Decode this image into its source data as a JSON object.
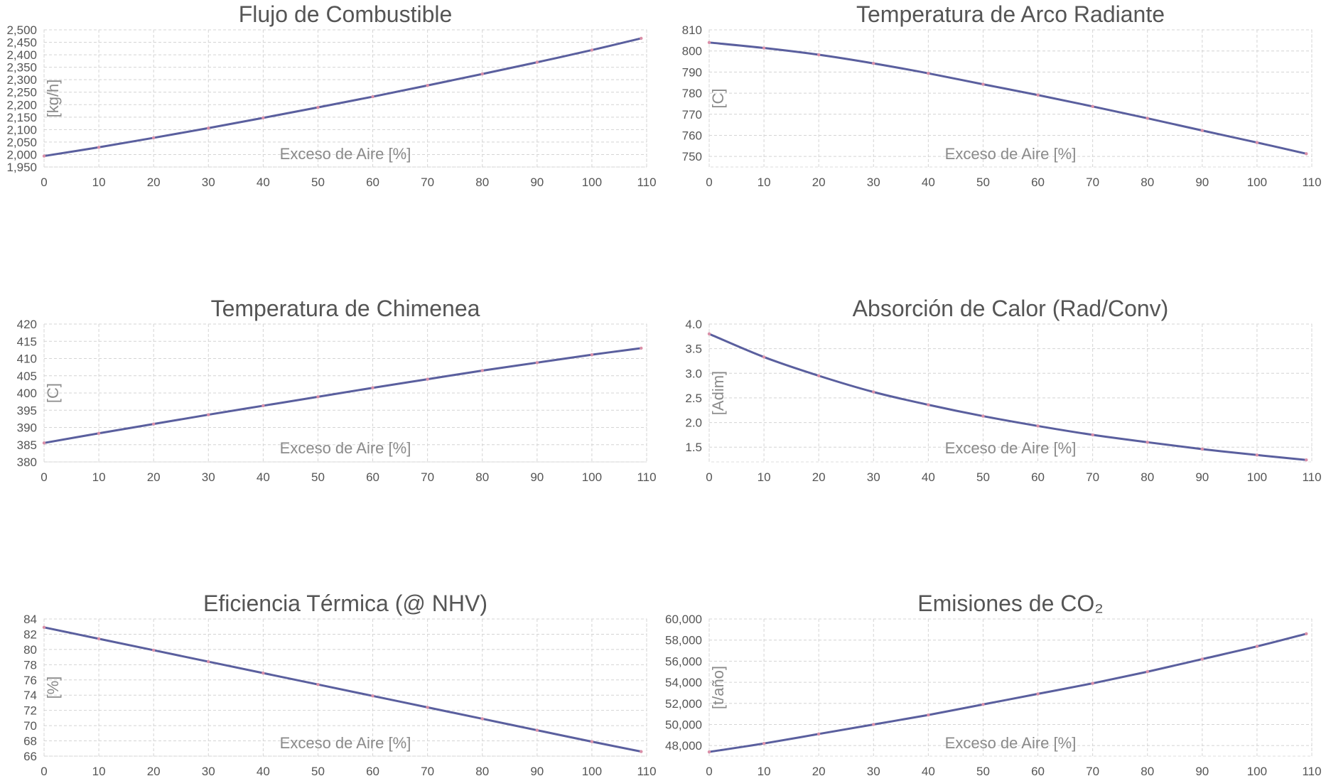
{
  "chart_data": [
    {
      "type": "line",
      "title": "Flujo de Combustible",
      "xlabel": "Exceso de Aire [%]",
      "ylabel": "[kg/h]",
      "xlim": [
        0,
        110
      ],
      "ylim": [
        1950,
        2500
      ],
      "xticks": [
        0,
        10,
        20,
        30,
        40,
        50,
        60,
        70,
        80,
        90,
        100,
        110
      ],
      "yticks": [
        1950,
        2000,
        2050,
        2100,
        2150,
        2200,
        2250,
        2300,
        2350,
        2400,
        2450,
        2500
      ],
      "ytick_labels": [
        "1,950",
        "2,000",
        "2,050",
        "2,100",
        "2,150",
        "2,200",
        "2,250",
        "2,300",
        "2,350",
        "2,400",
        "2,450",
        "2,500"
      ],
      "grid": true,
      "series": [
        {
          "x": [
            0,
            10,
            20,
            30,
            40,
            50,
            60,
            70,
            80,
            90,
            100,
            109
          ],
          "y": [
            1994,
            2029,
            2067,
            2106,
            2147,
            2189,
            2232,
            2277,
            2323,
            2370,
            2419,
            2466
          ]
        }
      ]
    },
    {
      "type": "line",
      "title": "Temperatura de Arco Radiante",
      "xlabel": "Exceso de Aire [%]",
      "ylabel": "[C]",
      "xlim": [
        0,
        110
      ],
      "ylim": [
        745,
        810
      ],
      "xticks": [
        0,
        10,
        20,
        30,
        40,
        50,
        60,
        70,
        80,
        90,
        100,
        110
      ],
      "yticks": [
        750,
        760,
        770,
        780,
        790,
        800,
        810
      ],
      "ytick_labels": [
        "750",
        "760",
        "770",
        "780",
        "790",
        "800",
        "810"
      ],
      "grid": true,
      "series": [
        {
          "x": [
            0,
            10,
            20,
            30,
            40,
            50,
            60,
            70,
            80,
            90,
            100,
            109
          ],
          "y": [
            804.0,
            801.4,
            798.2,
            794.1,
            789.4,
            784.2,
            779.1,
            773.7,
            768.1,
            762.3,
            756.6,
            751.3
          ]
        }
      ]
    },
    {
      "type": "line",
      "title": "Temperatura de Chimenea",
      "xlabel": "Exceso de Aire [%]",
      "ylabel": "[C]",
      "xlim": [
        0,
        110
      ],
      "ylim": [
        380,
        420
      ],
      "xticks": [
        0,
        10,
        20,
        30,
        40,
        50,
        60,
        70,
        80,
        90,
        100,
        110
      ],
      "yticks": [
        380,
        385,
        390,
        395,
        400,
        405,
        410,
        415,
        420
      ],
      "ytick_labels": [
        "380",
        "385",
        "390",
        "395",
        "400",
        "405",
        "410",
        "415",
        "420"
      ],
      "grid": true,
      "series": [
        {
          "x": [
            0,
            10,
            20,
            30,
            40,
            50,
            60,
            70,
            80,
            90,
            100,
            109
          ],
          "y": [
            385.5,
            388.3,
            391.0,
            393.7,
            396.3,
            398.9,
            401.5,
            404.0,
            406.5,
            408.8,
            411.1,
            413.0
          ]
        }
      ]
    },
    {
      "type": "line",
      "title": "Absorción de Calor (Rad/Conv)",
      "xlabel": "Exceso de Aire [%]",
      "ylabel": "[Adim]",
      "xlim": [
        0,
        110
      ],
      "ylim": [
        1.2,
        4.0
      ],
      "xticks": [
        0,
        10,
        20,
        30,
        40,
        50,
        60,
        70,
        80,
        90,
        100,
        110
      ],
      "yticks": [
        1.5,
        2.0,
        2.5,
        3.0,
        3.5,
        4.0
      ],
      "ytick_labels": [
        "1.5",
        "2.0",
        "2.5",
        "3.0",
        "3.5",
        "4.0"
      ],
      "grid": true,
      "series": [
        {
          "x": [
            0,
            10,
            20,
            30,
            40,
            50,
            60,
            70,
            80,
            90,
            100,
            109
          ],
          "y": [
            3.8,
            3.33,
            2.95,
            2.62,
            2.36,
            2.13,
            1.93,
            1.75,
            1.6,
            1.46,
            1.34,
            1.24
          ]
        }
      ]
    },
    {
      "type": "line",
      "title": "Eficiencia Térmica (@ NHV)",
      "xlabel": "Exceso de Aire [%]",
      "ylabel": "[%]",
      "xlim": [
        0,
        110
      ],
      "ylim": [
        66,
        84
      ],
      "xticks": [
        0,
        10,
        20,
        30,
        40,
        50,
        60,
        70,
        80,
        90,
        100,
        110
      ],
      "yticks": [
        66,
        68,
        70,
        72,
        74,
        76,
        78,
        80,
        82,
        84
      ],
      "ytick_labels": [
        "66",
        "68",
        "70",
        "72",
        "74",
        "76",
        "78",
        "80",
        "82",
        "84"
      ],
      "grid": true,
      "series": [
        {
          "x": [
            0,
            10,
            20,
            30,
            40,
            50,
            60,
            70,
            80,
            90,
            100,
            109
          ],
          "y": [
            82.9,
            81.4,
            79.9,
            78.4,
            76.9,
            75.4,
            73.9,
            72.4,
            70.9,
            69.4,
            67.9,
            66.6
          ]
        }
      ]
    },
    {
      "type": "line",
      "title": "Emisiones de CO₂",
      "xlabel": "Exceso de Aire [%]",
      "ylabel": "[t/año]",
      "xlim": [
        0,
        110
      ],
      "ylim": [
        47000,
        60000
      ],
      "xticks": [
        0,
        10,
        20,
        30,
        40,
        50,
        60,
        70,
        80,
        90,
        100,
        110
      ],
      "yticks": [
        48000,
        50000,
        52000,
        54000,
        56000,
        58000,
        60000
      ],
      "ytick_labels": [
        "48,000",
        "50,000",
        "52,000",
        "54,000",
        "56,000",
        "58,000",
        "60,000"
      ],
      "grid": true,
      "series": [
        {
          "x": [
            0,
            10,
            20,
            30,
            40,
            50,
            60,
            70,
            80,
            90,
            100,
            109
          ],
          "y": [
            47400,
            48200,
            49100,
            50000,
            50900,
            51900,
            52900,
            53900,
            55000,
            56200,
            57400,
            58600
          ]
        }
      ]
    }
  ],
  "colors": {
    "line": "#5a5f9e",
    "markers": "#d98fa8",
    "text": "#555555",
    "axis_label": "#8a8a8a",
    "grid": "#d4d4d4"
  }
}
